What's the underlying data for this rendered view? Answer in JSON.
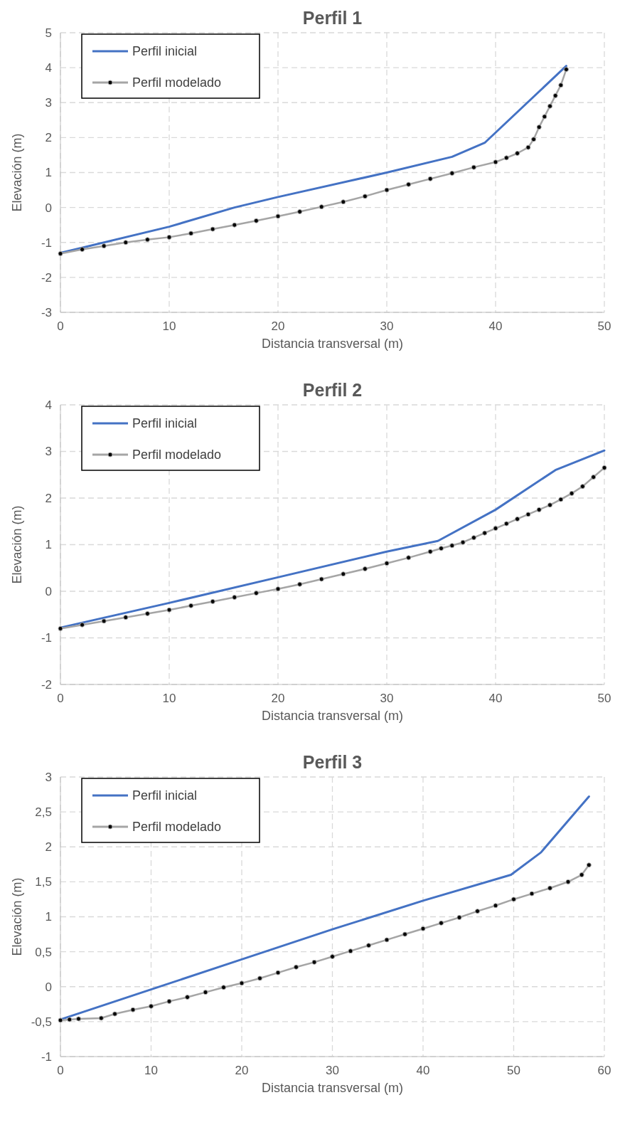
{
  "chart_data": [
    {
      "type": "line",
      "title": "Perfil 1",
      "xlabel": "Distancia transversal (m)",
      "ylabel": "Elevación (m)",
      "xlim": [
        0,
        50
      ],
      "xticks": [
        0,
        10,
        20,
        30,
        40,
        50
      ],
      "ylim": [
        -3,
        5
      ],
      "yticks": [
        -3,
        -2,
        -1,
        0,
        1,
        2,
        3,
        4,
        5
      ],
      "grid": true,
      "legend": "top left",
      "series": [
        {
          "name": "Perfil inicial",
          "color": "#4472c4",
          "marker": "none",
          "x": [
            0,
            10,
            16,
            20,
            30,
            36,
            39,
            46.5
          ],
          "values": [
            -1.3,
            -0.55,
            0,
            0.3,
            1.0,
            1.45,
            1.85,
            4.05
          ]
        },
        {
          "name": "Perfil modelado",
          "color": "#a5a5a5",
          "marker": "circle",
          "x": [
            0,
            2,
            4,
            6,
            8,
            10,
            12,
            14,
            16,
            18,
            20,
            22,
            24,
            26,
            28,
            30,
            32,
            34,
            36,
            38,
            40,
            41,
            42,
            43,
            43.5,
            44,
            44.5,
            45,
            45.5,
            46,
            46.5
          ],
          "values": [
            -1.32,
            -1.2,
            -1.1,
            -1.0,
            -0.92,
            -0.85,
            -0.74,
            -0.62,
            -0.5,
            -0.38,
            -0.25,
            -0.12,
            0.02,
            0.16,
            0.32,
            0.5,
            0.66,
            0.82,
            0.98,
            1.15,
            1.3,
            1.42,
            1.55,
            1.72,
            1.95,
            2.3,
            2.6,
            2.9,
            3.2,
            3.5,
            3.95
          ]
        }
      ]
    },
    {
      "type": "line",
      "title": "Perfil 2",
      "xlabel": "Distancia transversal (m)",
      "ylabel": "Elevación (m)",
      "xlim": [
        0,
        50
      ],
      "xticks": [
        0,
        10,
        20,
        30,
        40,
        50
      ],
      "ylim": [
        -2,
        4
      ],
      "yticks": [
        -2,
        -1,
        0,
        1,
        2,
        3,
        4
      ],
      "grid": true,
      "legend": "top left",
      "series": [
        {
          "name": "Perfil inicial",
          "color": "#4472c4",
          "marker": "none",
          "x": [
            0,
            10,
            20,
            30,
            34.7,
            40,
            45.5,
            50
          ],
          "values": [
            -0.78,
            -0.25,
            0.3,
            0.85,
            1.08,
            1.75,
            2.6,
            3.02
          ]
        },
        {
          "name": "Perfil modelado",
          "color": "#a5a5a5",
          "marker": "circle",
          "x": [
            0,
            2,
            4,
            6,
            8,
            10,
            12,
            14,
            16,
            18,
            20,
            22,
            24,
            26,
            28,
            30,
            32,
            34,
            35,
            36,
            37,
            38,
            39,
            40,
            41,
            42,
            43,
            44,
            45,
            46,
            47,
            48,
            49,
            50
          ],
          "values": [
            -0.8,
            -0.72,
            -0.64,
            -0.56,
            -0.48,
            -0.4,
            -0.31,
            -0.22,
            -0.13,
            -0.04,
            0.05,
            0.15,
            0.26,
            0.37,
            0.48,
            0.6,
            0.72,
            0.85,
            0.92,
            0.98,
            1.05,
            1.15,
            1.25,
            1.35,
            1.45,
            1.55,
            1.65,
            1.75,
            1.85,
            1.97,
            2.1,
            2.25,
            2.45,
            2.65
          ]
        }
      ]
    },
    {
      "type": "line",
      "title": "Perfil 3",
      "xlabel": "Distancia transversal (m)",
      "ylabel": "Elevación (m)",
      "xlim": [
        0,
        60
      ],
      "xticks": [
        0,
        10,
        20,
        30,
        40,
        50,
        60
      ],
      "ylim": [
        -1,
        3
      ],
      "yticks": [
        -1,
        {
          "value": -0.5,
          "label": "-0,5"
        },
        0,
        {
          "value": 0.5,
          "label": "0,5"
        },
        1,
        {
          "value": 1.5,
          "label": "1,5"
        },
        2,
        {
          "value": 2.5,
          "label": "2,5"
        },
        3
      ],
      "grid": true,
      "legend": "top left",
      "series": [
        {
          "name": "Perfil inicial",
          "color": "#4472c4",
          "marker": "none",
          "x": [
            0,
            10,
            20,
            30,
            40,
            49.7,
            53,
            58.3
          ],
          "values": [
            -0.47,
            -0.04,
            0.39,
            0.82,
            1.23,
            1.6,
            1.92,
            2.72
          ]
        },
        {
          "name": "Perfil modelado",
          "color": "#a5a5a5",
          "marker": "circle",
          "x": [
            0,
            1,
            2,
            4.5,
            6,
            8,
            10,
            12,
            14,
            16,
            18,
            20,
            22,
            24,
            26,
            28,
            30,
            32,
            34,
            36,
            38,
            40,
            42,
            44,
            46,
            48,
            50,
            52,
            54,
            56,
            57.5,
            58.3
          ],
          "values": [
            -0.48,
            -0.47,
            -0.46,
            -0.45,
            -0.39,
            -0.33,
            -0.28,
            -0.21,
            -0.15,
            -0.08,
            -0.01,
            0.05,
            0.12,
            0.2,
            0.28,
            0.35,
            0.43,
            0.51,
            0.59,
            0.67,
            0.75,
            0.83,
            0.91,
            0.99,
            1.08,
            1.16,
            1.25,
            1.33,
            1.41,
            1.5,
            1.6,
            1.74
          ]
        }
      ]
    }
  ]
}
